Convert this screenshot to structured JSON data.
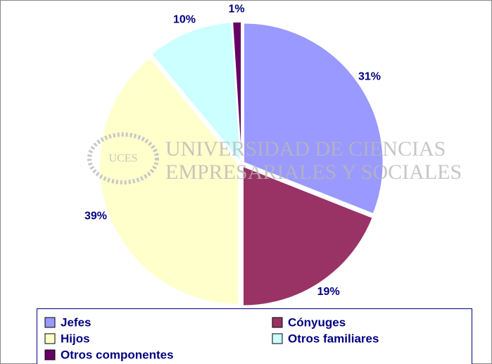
{
  "chart_data": {
    "type": "pie",
    "categories": [
      "Jefes",
      "Cónyuges",
      "Hijos",
      "Otros familiares",
      "Otros componentes"
    ],
    "values": [
      31,
      19,
      39,
      10,
      1
    ],
    "value_labels": [
      "31%",
      "19%",
      "39%",
      "10%",
      "1%"
    ],
    "colors": [
      "#9999ff",
      "#993366",
      "#ffffcc",
      "#ccffff",
      "#660066"
    ],
    "watermark": [
      "UNIVERSIDAD DE CIENCIAS",
      "EMPRESARIALES Y SOCIALES",
      "UCES"
    ]
  }
}
